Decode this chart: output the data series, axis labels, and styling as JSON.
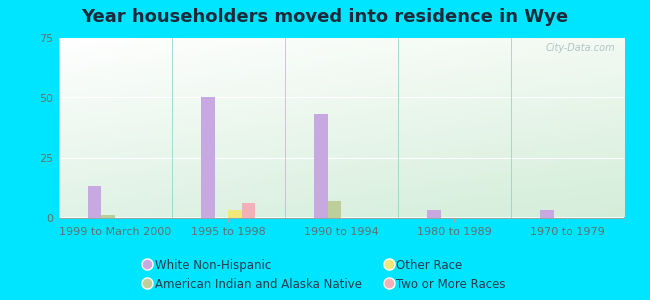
{
  "title": "Year householders moved into residence in Wye",
  "categories": [
    "1999 to March 2000",
    "1995 to 1998",
    "1990 to 1994",
    "1980 to 1989",
    "1970 to 1979"
  ],
  "series": {
    "White Non-Hispanic": [
      13,
      50,
      43,
      3,
      3
    ],
    "American Indian and Alaska Native": [
      1,
      0,
      7,
      0,
      0
    ],
    "Other Race": [
      0,
      3,
      0,
      0,
      0
    ],
    "Two or More Races": [
      0,
      6,
      0,
      0,
      0
    ]
  },
  "colors": {
    "White Non-Hispanic": "#c8a8e0",
    "American Indian and Alaska Native": "#bece98",
    "Other Race": "#f0e87a",
    "Two or More Races": "#f4b0b8"
  },
  "ylim": [
    0,
    75
  ],
  "yticks": [
    0,
    25,
    50,
    75
  ],
  "bar_width": 0.12,
  "background_outer": "#00e5ff",
  "watermark": "City-Data.com",
  "title_fontsize": 13,
  "tick_fontsize": 8,
  "legend_fontsize": 8.5,
  "legend_order": [
    "White Non-Hispanic",
    "American Indian and Alaska Native",
    "Other Race",
    "Two or More Races"
  ]
}
